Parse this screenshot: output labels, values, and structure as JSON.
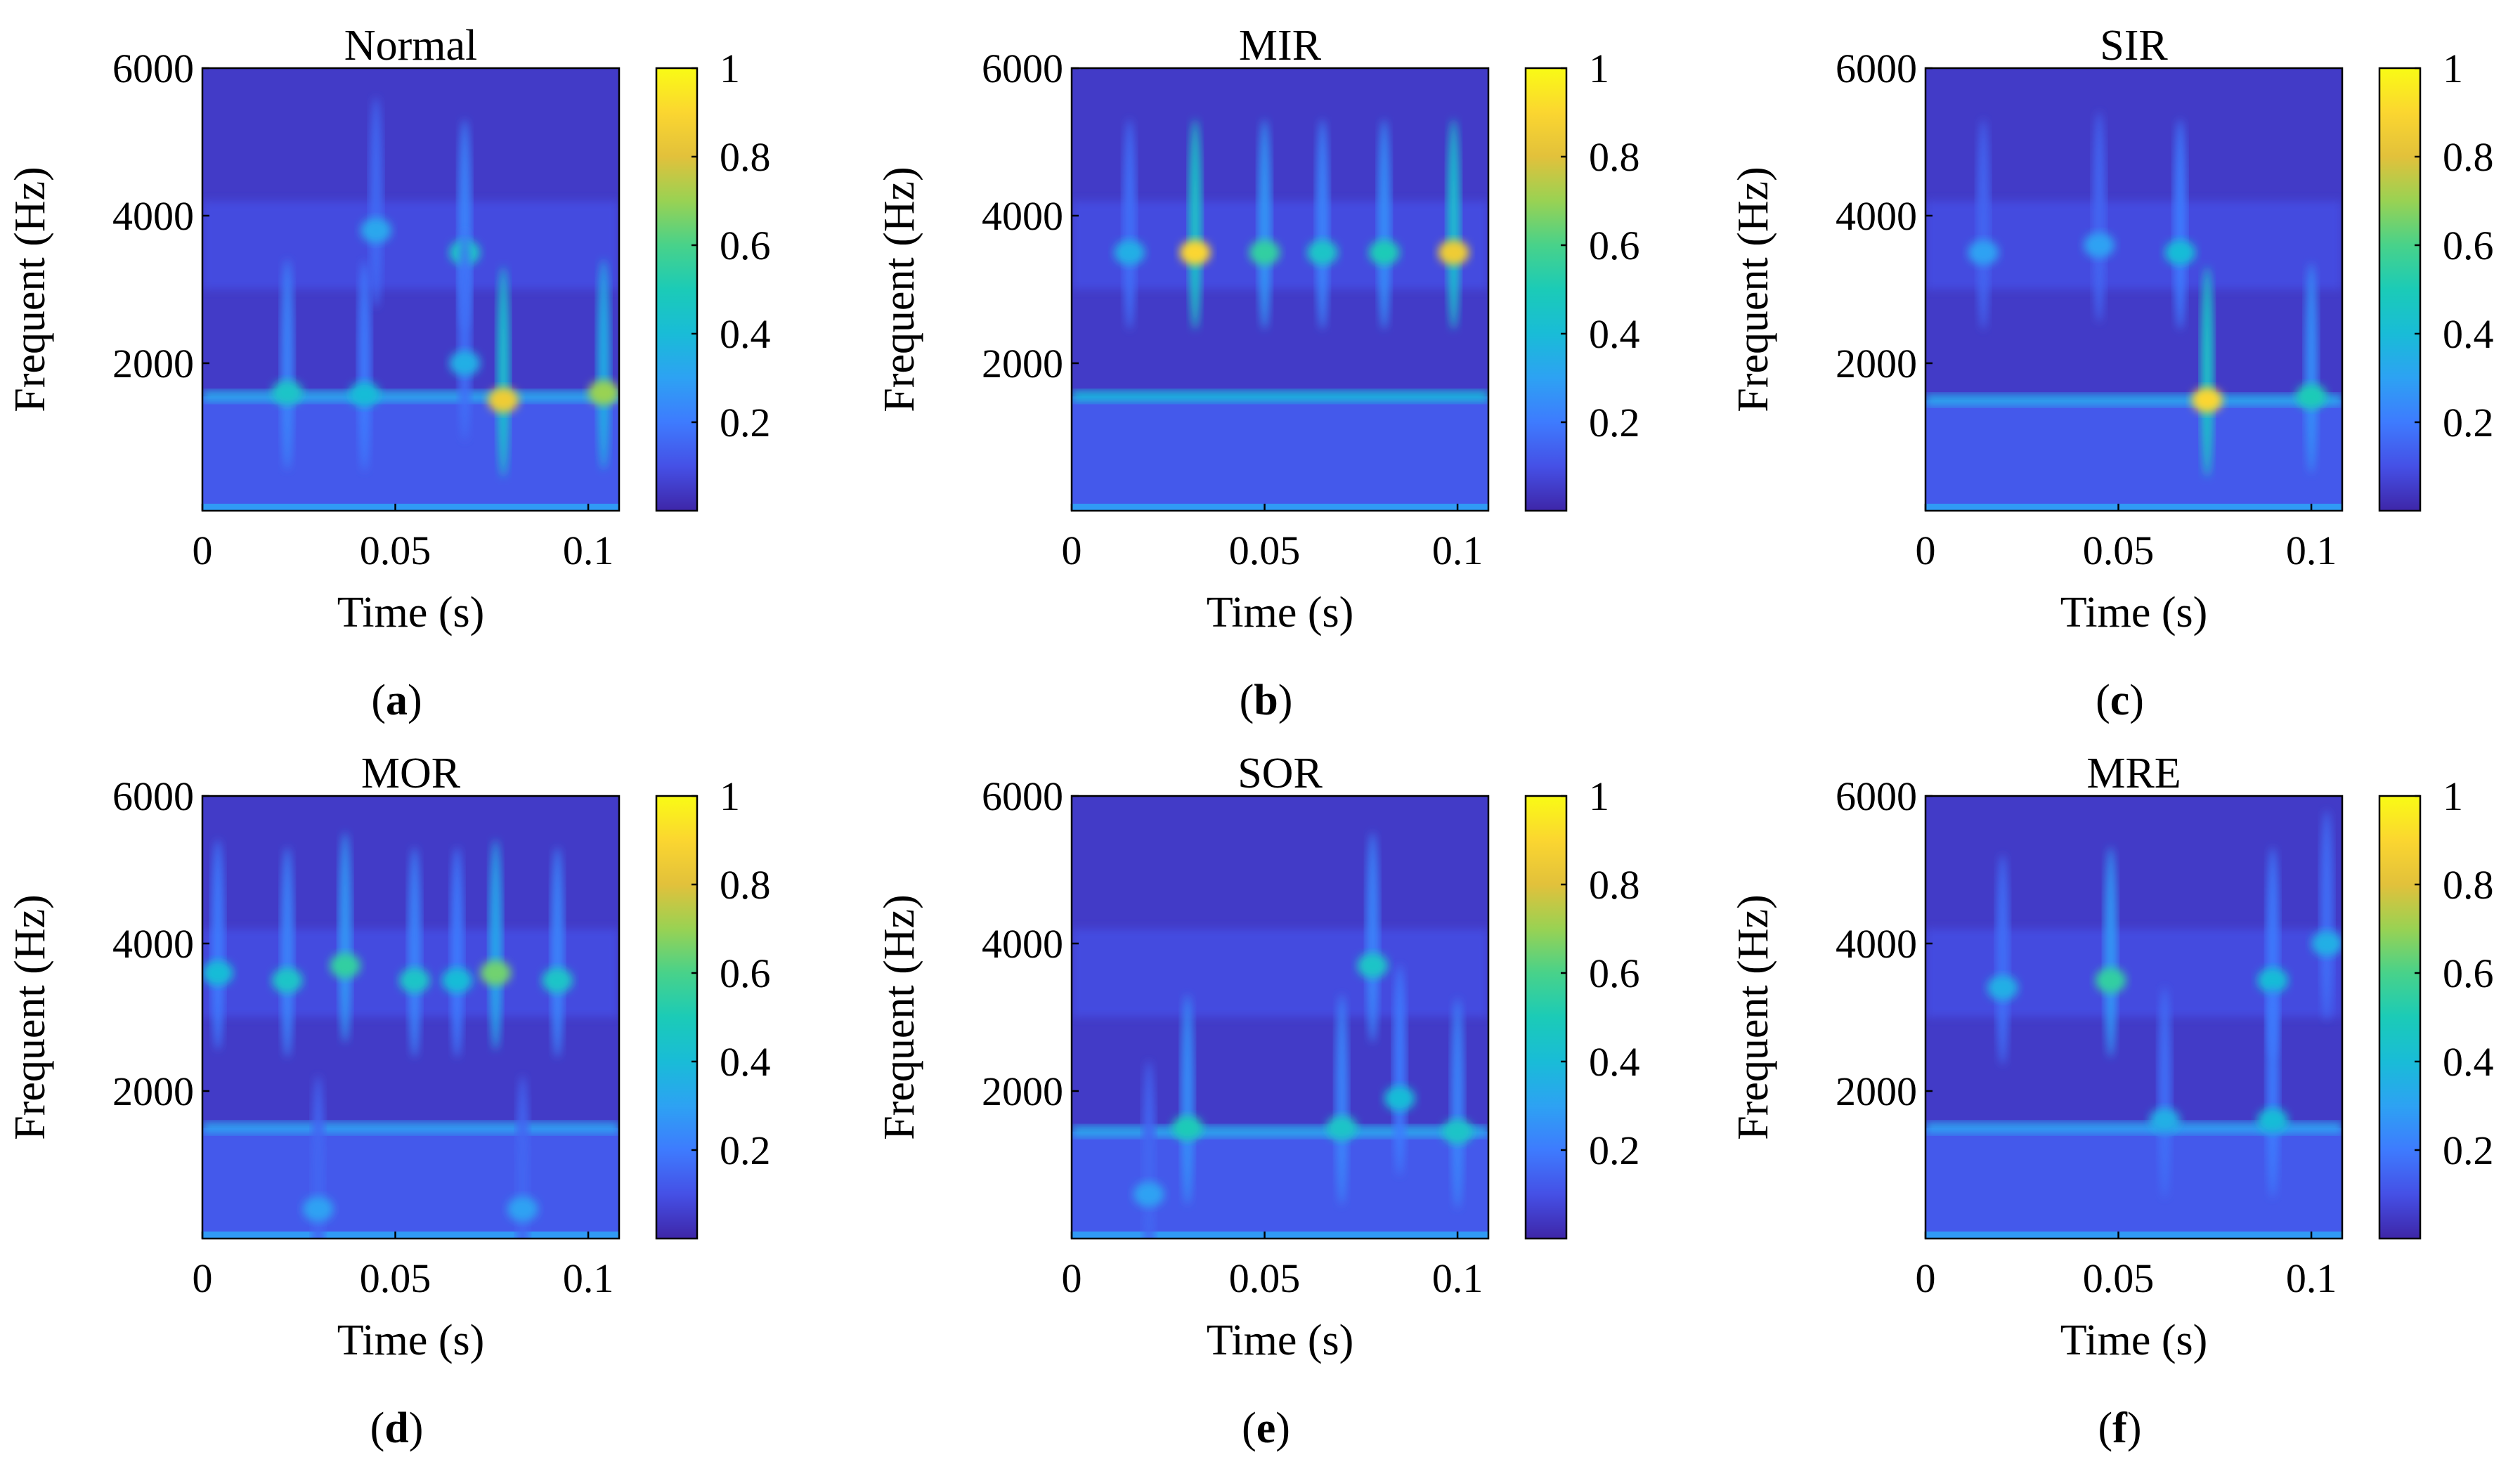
{
  "chart_data": [
    {
      "type": "heatmap",
      "title": "Normal",
      "panel_label": "a",
      "xlabel": "Time (s)",
      "ylabel": "Frequent (Hz)",
      "xlim": [
        0,
        0.108
      ],
      "ylim": [
        0,
        6000
      ],
      "xticks": [
        "0",
        "0.05",
        "0.1"
      ],
      "yticks": [
        "6000",
        "4000",
        "2000"
      ],
      "colorbar": {
        "range": [
          0,
          1
        ],
        "ticks": [
          "1",
          "0.8",
          "0.6",
          "0.4",
          "0.2"
        ]
      },
      "baseline_band": {
        "frequency": 1550,
        "intensity": 0.32
      },
      "hotspots": [
        {
          "t": 0.022,
          "f": 1600,
          "value": 0.45
        },
        {
          "t": 0.042,
          "f": 1580,
          "value": 0.4
        },
        {
          "t": 0.045,
          "f": 3800,
          "value": 0.32
        },
        {
          "t": 0.068,
          "f": 3500,
          "value": 0.45
        },
        {
          "t": 0.068,
          "f": 2000,
          "value": 0.35
        },
        {
          "t": 0.078,
          "f": 1500,
          "value": 0.85
        },
        {
          "t": 0.104,
          "f": 1600,
          "value": 0.7
        }
      ]
    },
    {
      "type": "heatmap",
      "title": "MIR",
      "panel_label": "b",
      "xlabel": "Time (s)",
      "ylabel": "Frequent (Hz)",
      "xlim": [
        0,
        0.108
      ],
      "ylim": [
        0,
        6000
      ],
      "xticks": [
        "0",
        "0.05",
        "0.1"
      ],
      "yticks": [
        "6000",
        "4000",
        "2000"
      ],
      "colorbar": {
        "range": [
          0,
          1
        ],
        "ticks": [
          "1",
          "0.8",
          "0.6",
          "0.4",
          "0.2"
        ]
      },
      "baseline_band": {
        "frequency": 1550,
        "intensity": 0.38
      },
      "hotspots": [
        {
          "t": 0.032,
          "f": 3500,
          "value": 0.9
        },
        {
          "t": 0.05,
          "f": 3500,
          "value": 0.55
        },
        {
          "t": 0.065,
          "f": 3500,
          "value": 0.45
        },
        {
          "t": 0.081,
          "f": 3500,
          "value": 0.5
        },
        {
          "t": 0.099,
          "f": 3500,
          "value": 0.85
        },
        {
          "t": 0.015,
          "f": 3500,
          "value": 0.35
        }
      ]
    },
    {
      "type": "heatmap",
      "title": "SIR",
      "panel_label": "c",
      "xlabel": "Time (s)",
      "ylabel": "Frequent (Hz)",
      "xlim": [
        0,
        0.108
      ],
      "ylim": [
        0,
        6000
      ],
      "xticks": [
        "0",
        "0.05",
        "0.1"
      ],
      "yticks": [
        "6000",
        "4000",
        "2000"
      ],
      "colorbar": {
        "range": [
          0,
          1
        ],
        "ticks": [
          "1",
          "0.8",
          "0.6",
          "0.4",
          "0.2"
        ]
      },
      "baseline_band": {
        "frequency": 1500,
        "intensity": 0.32
      },
      "hotspots": [
        {
          "t": 0.073,
          "f": 1500,
          "value": 0.9
        },
        {
          "t": 0.1,
          "f": 1550,
          "value": 0.5
        },
        {
          "t": 0.066,
          "f": 3500,
          "value": 0.4
        },
        {
          "t": 0.045,
          "f": 3600,
          "value": 0.3
        },
        {
          "t": 0.015,
          "f": 3500,
          "value": 0.3
        }
      ]
    },
    {
      "type": "heatmap",
      "title": "MOR",
      "panel_label": "d",
      "xlabel": "Time (s)",
      "ylabel": "Frequent (Hz)",
      "xlim": [
        0,
        0.108
      ],
      "ylim": [
        0,
        6000
      ],
      "xticks": [
        "0",
        "0.05",
        "0.1"
      ],
      "yticks": [
        "6000",
        "4000",
        "2000"
      ],
      "colorbar": {
        "range": [
          0,
          1
        ],
        "ticks": [
          "1",
          "0.8",
          "0.6",
          "0.4",
          "0.2"
        ]
      },
      "baseline_band": {
        "frequency": 1500,
        "intensity": 0.3
      },
      "hotspots": [
        {
          "t": 0.004,
          "f": 3600,
          "value": 0.4
        },
        {
          "t": 0.022,
          "f": 3500,
          "value": 0.45
        },
        {
          "t": 0.037,
          "f": 3700,
          "value": 0.55
        },
        {
          "t": 0.055,
          "f": 3500,
          "value": 0.45
        },
        {
          "t": 0.066,
          "f": 3500,
          "value": 0.4
        },
        {
          "t": 0.076,
          "f": 3600,
          "value": 0.65
        },
        {
          "t": 0.092,
          "f": 3500,
          "value": 0.45
        },
        {
          "t": 0.03,
          "f": 400,
          "value": 0.3
        },
        {
          "t": 0.083,
          "f": 400,
          "value": 0.3
        }
      ]
    },
    {
      "type": "heatmap",
      "title": "SOR",
      "panel_label": "e",
      "xlabel": "Time (s)",
      "ylabel": "Frequent (Hz)",
      "xlim": [
        0,
        0.108
      ],
      "ylim": [
        0,
        6000
      ],
      "xticks": [
        "0",
        "0.05",
        "0.1"
      ],
      "yticks": [
        "6000",
        "4000",
        "2000"
      ],
      "colorbar": {
        "range": [
          0,
          1
        ],
        "ticks": [
          "1",
          "0.8",
          "0.6",
          "0.4",
          "0.2"
        ]
      },
      "baseline_band": {
        "frequency": 1450,
        "intensity": 0.32
      },
      "hotspots": [
        {
          "t": 0.078,
          "f": 3700,
          "value": 0.45
        },
        {
          "t": 0.03,
          "f": 1500,
          "value": 0.5
        },
        {
          "t": 0.07,
          "f": 1500,
          "value": 0.45
        },
        {
          "t": 0.085,
          "f": 1900,
          "value": 0.4
        },
        {
          "t": 0.1,
          "f": 1450,
          "value": 0.45
        },
        {
          "t": 0.02,
          "f": 600,
          "value": 0.3
        }
      ]
    },
    {
      "type": "heatmap",
      "title": "MRE",
      "panel_label": "f",
      "xlabel": "Time (s)",
      "ylabel": "Frequent (Hz)",
      "xlim": [
        0,
        0.108
      ],
      "ylim": [
        0,
        6000
      ],
      "xticks": [
        "0",
        "0.05",
        "0.1"
      ],
      "yticks": [
        "6000",
        "4000",
        "2000"
      ],
      "colorbar": {
        "range": [
          0,
          1
        ],
        "ticks": [
          "1",
          "0.8",
          "0.6",
          "0.4",
          "0.2"
        ]
      },
      "baseline_band": {
        "frequency": 1500,
        "intensity": 0.3
      },
      "hotspots": [
        {
          "t": 0.048,
          "f": 3500,
          "value": 0.55
        },
        {
          "t": 0.02,
          "f": 3400,
          "value": 0.35
        },
        {
          "t": 0.09,
          "f": 3500,
          "value": 0.4
        },
        {
          "t": 0.104,
          "f": 4000,
          "value": 0.35
        },
        {
          "t": 0.062,
          "f": 1600,
          "value": 0.35
        },
        {
          "t": 0.09,
          "f": 1600,
          "value": 0.4
        }
      ]
    }
  ]
}
